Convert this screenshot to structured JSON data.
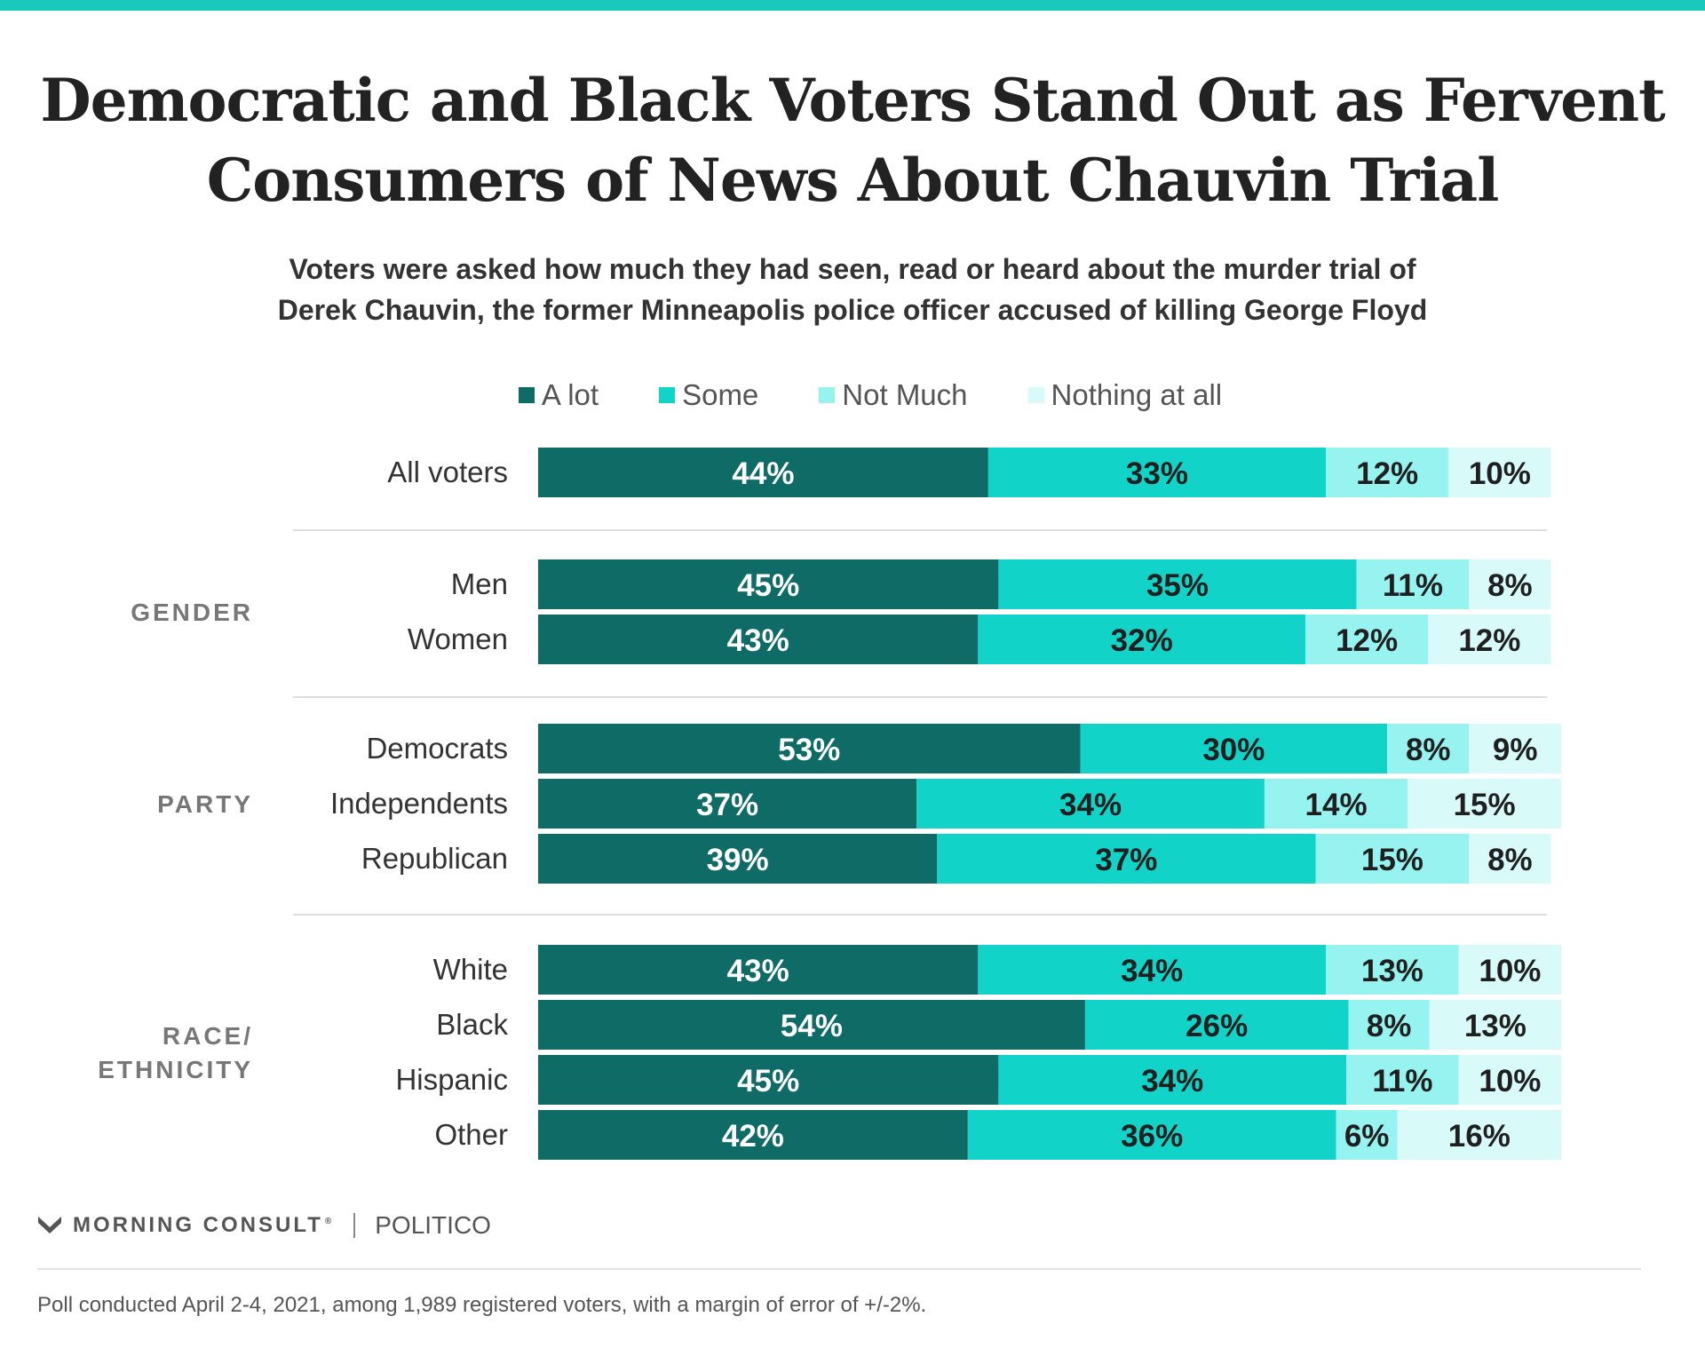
{
  "title": "Democratic and Black Voters Stand Out as Fervent Consumers of News About Chauvin Trial",
  "subtitle_line1": "Voters were asked how much they had seen, read or heard about the murder trial of",
  "subtitle_line2": "Derek Chauvin, the former Minneapolis police officer accused of killing George Floyd",
  "colors": {
    "top_bar": "#18c9bc",
    "a_lot": "#0e6b66",
    "some": "#12d3c7",
    "not_much": "#96f3ef",
    "nothing_at_all": "#d8fbf9",
    "separator": "#dddddd"
  },
  "chart_data": {
    "type": "bar",
    "orientation": "horizontal",
    "stacked": true,
    "unit": "%",
    "xlim": [
      0,
      100
    ],
    "grid": false,
    "legend_position": "top",
    "series": [
      {
        "name": "A lot",
        "color": "#0e6b66",
        "values": [
          44,
          45,
          43,
          53,
          37,
          39,
          43,
          54,
          45,
          42
        ]
      },
      {
        "name": "Some",
        "color": "#12d3c7",
        "values": [
          33,
          35,
          32,
          30,
          34,
          37,
          34,
          26,
          34,
          36
        ]
      },
      {
        "name": "Not Much",
        "color": "#96f3ef",
        "values": [
          12,
          11,
          12,
          8,
          14,
          15,
          13,
          8,
          11,
          6
        ]
      },
      {
        "name": "Nothing at all",
        "color": "#d8fbf9",
        "values": [
          10,
          8,
          12,
          9,
          15,
          8,
          10,
          13,
          10,
          16
        ]
      }
    ],
    "categories": [
      "All voters",
      "Men",
      "Women",
      "Democrats",
      "Independents",
      "Republican",
      "White",
      "Black",
      "Hispanic",
      "Other"
    ],
    "groups": [
      {
        "label_lines": [],
        "rows": [
          "All voters"
        ]
      },
      {
        "label_lines": [
          "GENDER"
        ],
        "rows": [
          "Men",
          "Women"
        ]
      },
      {
        "label_lines": [
          "PARTY"
        ],
        "rows": [
          "Democrats",
          "Independents",
          "Republican"
        ]
      },
      {
        "label_lines": [
          "RACE/",
          "ETHNICITY"
        ],
        "rows": [
          "White",
          "Black",
          "Hispanic",
          "Other"
        ]
      }
    ]
  },
  "footer": {
    "brand_primary": "MORNING CONSULT",
    "brand_registered": "®",
    "brand_secondary": "POLITICO",
    "logo_icon": "morning-consult-logo-icon",
    "note": "Poll conducted April 2-4, 2021, among 1,989 registered voters, with a margin of error of +/-2%."
  }
}
